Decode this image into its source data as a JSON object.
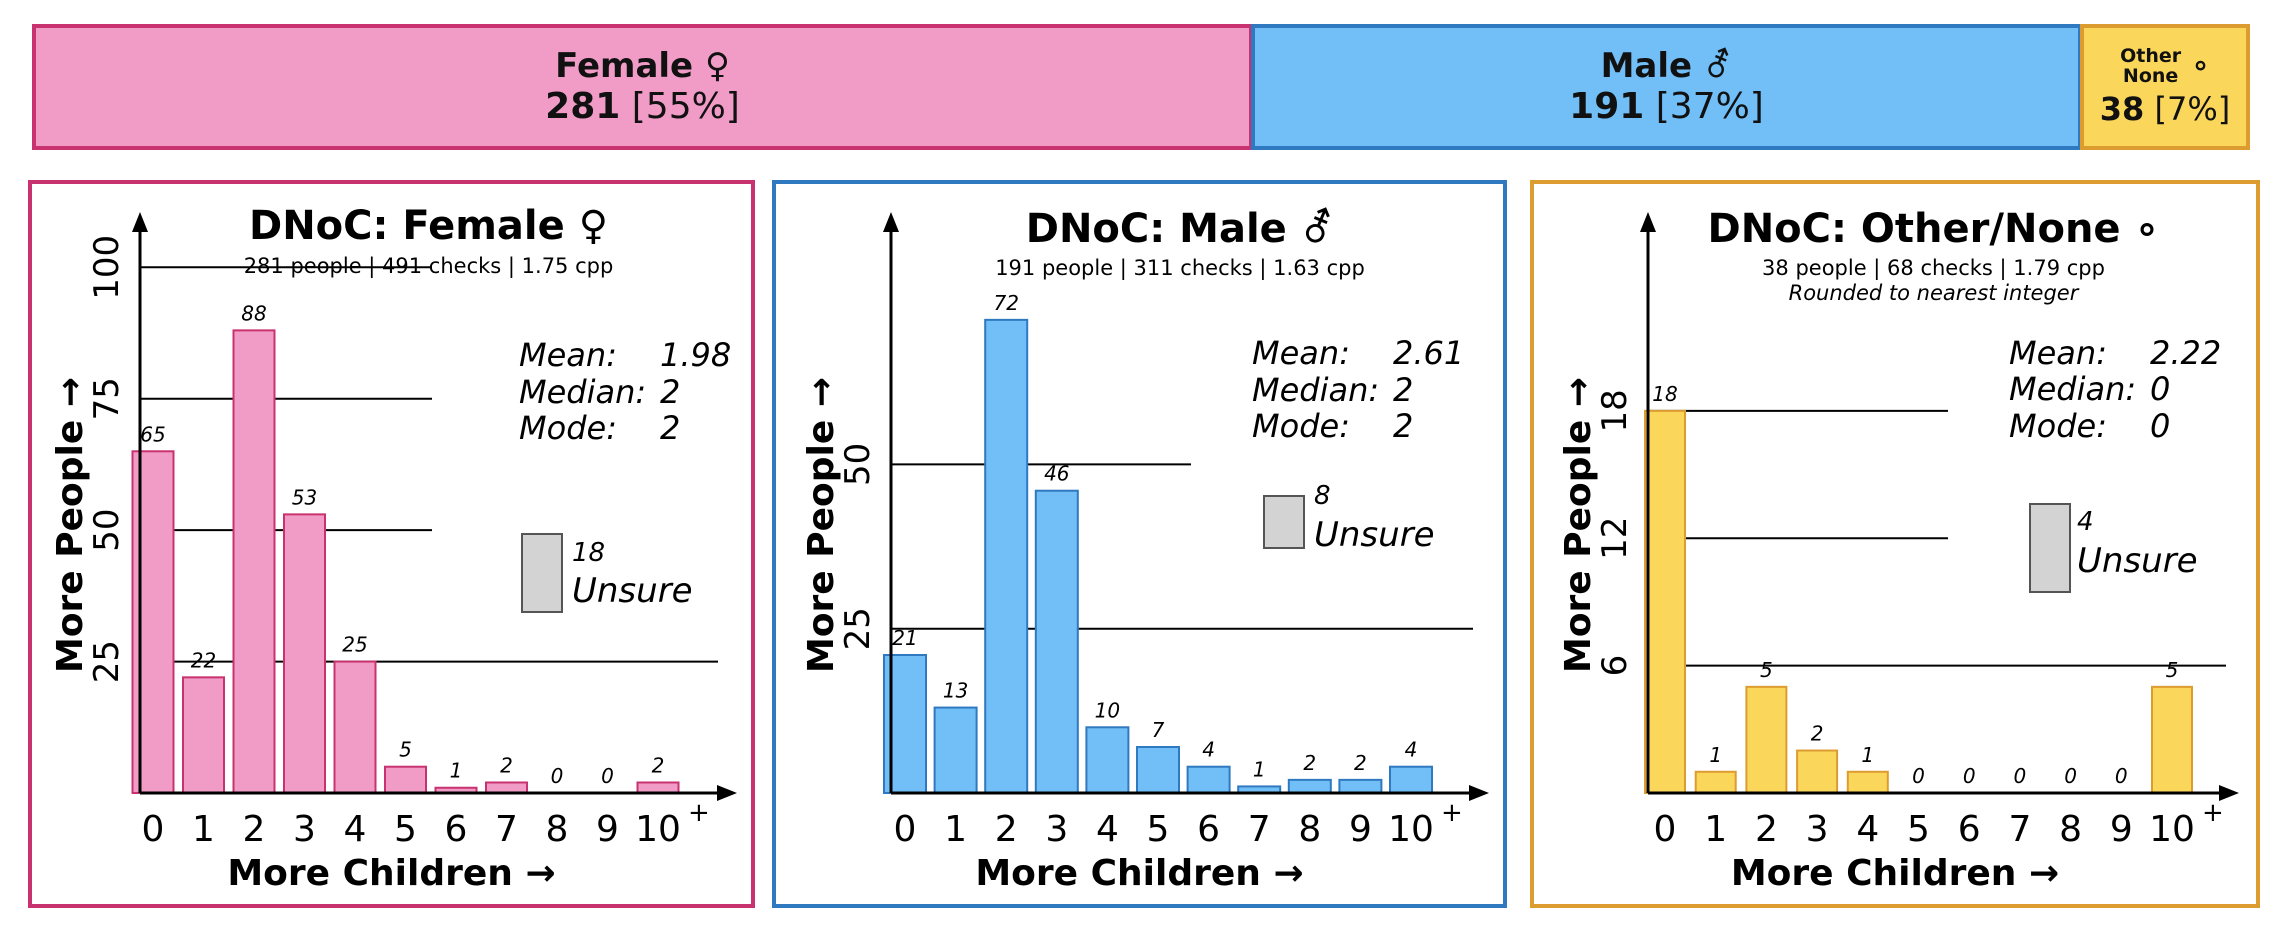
{
  "summary": {
    "female": {
      "name": "Female ♀",
      "count": "281",
      "pct": "[55%]"
    },
    "male": {
      "name": "Male ⚦",
      "count": "191",
      "pct": "[37%]"
    },
    "other": {
      "name_line1": "Other",
      "name_line2": "None",
      "symbol": "∘",
      "count": "38",
      "pct": "[7%]"
    }
  },
  "colors": {
    "female_fill": "#f19cc6",
    "female_edge": "#c8336f",
    "male_fill": "#72bff8",
    "male_edge": "#2f79c0",
    "other_fill": "#fad75a",
    "other_edge": "#dc9c30",
    "unsure_fill": "#d3d3d3"
  },
  "chart_data": [
    {
      "type": "bar",
      "title": "DNoC: Female ♀",
      "subtitle": "281 people | 491 checks | 1.75 cpp",
      "note": "",
      "xlabel": "More Children →",
      "ylabel": "More People →",
      "categories": [
        "0",
        "1",
        "2",
        "3",
        "4",
        "5",
        "6",
        "7",
        "8",
        "9",
        "10"
      ],
      "categories_superscript": {
        "10": "+"
      },
      "values": [
        65,
        22,
        88,
        53,
        25,
        5,
        1,
        2,
        0,
        0,
        2
      ],
      "ylim": [
        0,
        105
      ],
      "yticks": [
        25,
        50,
        75,
        100
      ],
      "stats": [
        [
          "Mean:",
          "1.98"
        ],
        [
          "Median:",
          "2"
        ],
        [
          "Mode:",
          "2"
        ]
      ],
      "unsure": {
        "value": 18,
        "label": "Unsure"
      }
    },
    {
      "type": "bar",
      "title": "DNoC: Male ⚦",
      "subtitle": "191 people | 311 checks | 1.63 cpp",
      "note": "",
      "xlabel": "More Children →",
      "ylabel": "More People →",
      "categories": [
        "0",
        "1",
        "2",
        "3",
        "4",
        "5",
        "6",
        "7",
        "8",
        "9",
        "10"
      ],
      "categories_superscript": {
        "10": "+"
      },
      "values": [
        21,
        13,
        72,
        46,
        10,
        7,
        4,
        1,
        2,
        2,
        4
      ],
      "ylim": [
        0,
        84
      ],
      "yticks": [
        25,
        50
      ],
      "stats": [
        [
          "Mean:",
          "2.61"
        ],
        [
          "Median:",
          "2"
        ],
        [
          "Mode:",
          "2"
        ]
      ],
      "unsure": {
        "value": 8,
        "label": "Unsure"
      }
    },
    {
      "type": "bar",
      "title": "DNoC: Other/None ∘",
      "subtitle": "38 people | 68 checks | 1.79 cpp",
      "note": "Rounded to nearest integer",
      "xlabel": "More Children →",
      "ylabel": "More People →",
      "categories": [
        "0",
        "1",
        "2",
        "3",
        "4",
        "5",
        "6",
        "7",
        "8",
        "9",
        "10"
      ],
      "categories_superscript": {
        "10": "+"
      },
      "values": [
        18,
        1,
        5,
        2,
        1,
        0,
        0,
        0,
        0,
        0,
        5
      ],
      "ylim": [
        0,
        26
      ],
      "yticks": [
        6,
        12,
        18
      ],
      "stats": [
        [
          "Mean:",
          "2.22"
        ],
        [
          "Median:",
          "0"
        ],
        [
          "Mode:",
          "0"
        ]
      ],
      "unsure": {
        "value": 4,
        "label": "Unsure"
      }
    }
  ]
}
